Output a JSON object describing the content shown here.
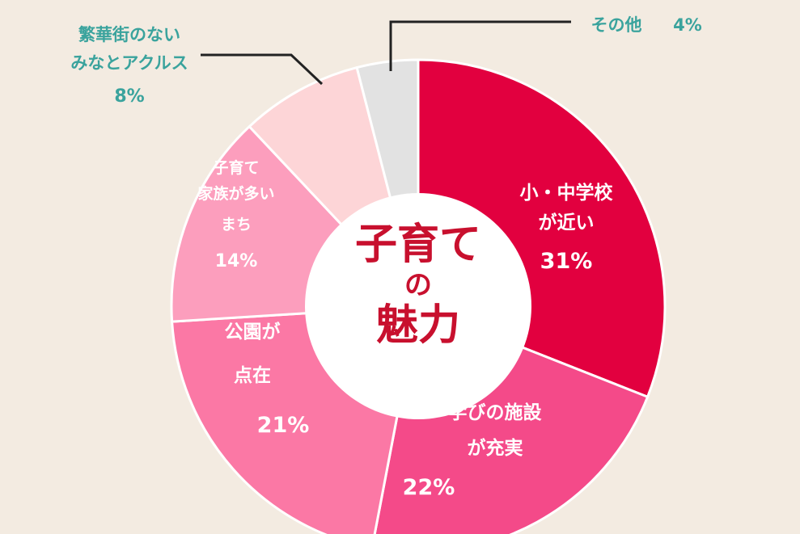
{
  "chart_data": {
    "type": "pie",
    "center_title": [
      "子育て",
      "の",
      "魅力"
    ],
    "slices": [
      {
        "label_lines": [
          "小・中学校",
          "が近い"
        ],
        "value": 31,
        "value_text": "31%",
        "color": "#e2003f",
        "text_color": "#ffffff"
      },
      {
        "label_lines": [
          "学びの施設",
          "が充実"
        ],
        "value": 22,
        "value_text": "22%",
        "color": "#f44a89",
        "text_color": "#ffffff"
      },
      {
        "label_lines": [
          "公園が",
          "点在"
        ],
        "value": 21,
        "value_text": "21%",
        "color": "#fb78a5",
        "text_color": "#ffffff"
      },
      {
        "label_lines": [
          "子育て",
          "家族が多い",
          "まち"
        ],
        "value": 14,
        "value_text": "14%",
        "color": "#fc9ebd",
        "text_color": "#ffffff"
      },
      {
        "label_lines": [
          "繁華街のない",
          "みなとアクルス"
        ],
        "value": 8,
        "value_text": "8%",
        "color": "#fdd5d7",
        "text_color": "#3aa39d"
      },
      {
        "label_lines": [
          "その他"
        ],
        "value": 4,
        "value_text": "4%",
        "color": "#e2e2e2",
        "text_color": "#3aa39d"
      }
    ],
    "colors": {
      "background": "#f3ebe1",
      "center_title": "#c8102e",
      "outside_label": "#3aa39d"
    }
  }
}
